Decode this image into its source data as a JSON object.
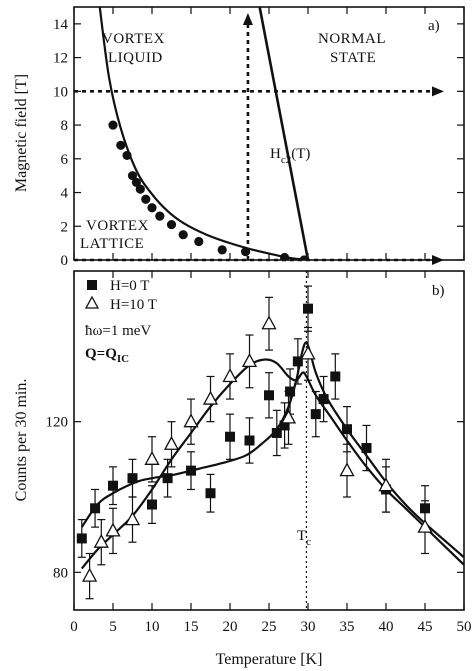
{
  "chart_data": [
    {
      "type": "line",
      "panel_tag": "a)",
      "ylabel": "Magnetic field [T]",
      "xlabel": "",
      "xlim": [
        0,
        50
      ],
      "ylim": [
        0,
        15
      ],
      "xticks": [
        0,
        5,
        10,
        15,
        20,
        25,
        30,
        35,
        40,
        45,
        50
      ],
      "yticks": [
        0,
        2,
        4,
        6,
        8,
        10,
        12,
        14
      ],
      "ytick_labels": [
        "0",
        "2",
        "4",
        "6",
        "8",
        "10",
        "12",
        "14"
      ],
      "region_labels": {
        "vortex_liquid_1": "VORTEX",
        "vortex_liquid_2": "LIQUID",
        "normal_1": "NORMAL",
        "normal_2": "STATE",
        "lattice_1": "VORTEX",
        "lattice_2": "LATTICE"
      },
      "hc2_label": "H",
      "hc2_sub": "c2",
      "hc2_suffix": "(T)",
      "series": [
        {
          "style": "filled-circle",
          "points": [
            [
              5,
              8.0
            ],
            [
              6,
              6.8
            ],
            [
              6.8,
              6.2
            ],
            [
              7.5,
              5.0
            ],
            [
              8,
              4.6
            ],
            [
              8.5,
              4.2
            ],
            [
              9.2,
              3.6
            ],
            [
              10,
              3.1
            ],
            [
              11,
              2.6
            ],
            [
              12.5,
              2.1
            ],
            [
              14,
              1.5
            ],
            [
              16,
              1.1
            ],
            [
              19,
              0.6
            ],
            [
              22,
              0.5
            ],
            [
              27,
              0.15
            ],
            [
              29.5,
              0.0
            ]
          ]
        },
        {
          "style": "line",
          "points": [
            [
              3.3,
              15
            ],
            [
              4.5,
              10.8
            ],
            [
              6,
              7.8
            ],
            [
              8,
              5.3
            ],
            [
              10,
              3.9
            ],
            [
              12,
              2.9
            ],
            [
              14,
              2.2
            ],
            [
              17,
              1.5
            ],
            [
              20,
              1.0
            ],
            [
              23,
              0.6
            ],
            [
              26,
              0.28
            ],
            [
              28,
              0.1
            ],
            [
              30,
              0.0
            ]
          ]
        },
        {
          "style": "line",
          "points": [
            [
              23.8,
              15
            ],
            [
              30,
              0
            ]
          ]
        }
      ],
      "markers": {
        "h_level": 10,
        "h_to_x": 50,
        "v_at_x": 22.3
      }
    },
    {
      "type": "scatter",
      "panel_tag": "b)",
      "xlabel": "Temperature [K]",
      "ylabel": "Counts per 30 min.",
      "xlim": [
        0,
        50
      ],
      "ylim": [
        70,
        160
      ],
      "xticks": [
        0,
        5,
        10,
        15,
        20,
        25,
        30,
        35,
        40,
        45,
        50
      ],
      "yticks": [
        80,
        120
      ],
      "legend_line_1": "H=0 T",
      "legend_line_2": "H=10 T",
      "energy_label": "ħω=1 meV",
      "q_label_main": "Q=Q",
      "q_label_sub": "IC",
      "tc_label": "T",
      "tc_sub": "c",
      "tc_value": 29.8,
      "series": [
        {
          "name": "H=0 T",
          "marker": "filled-square",
          "points": [
            {
              "x": 1,
              "y": 89,
              "err": 5
            },
            {
              "x": 2.7,
              "y": 97,
              "err": 5
            },
            {
              "x": 5,
              "y": 103,
              "err": 5
            },
            {
              "x": 7.5,
              "y": 105,
              "err": 5
            },
            {
              "x": 10,
              "y": 98,
              "err": 5
            },
            {
              "x": 12,
              "y": 105,
              "err": 5
            },
            {
              "x": 15,
              "y": 107,
              "err": 5
            },
            {
              "x": 17.5,
              "y": 101,
              "err": 5
            },
            {
              "x": 20,
              "y": 116,
              "err": 6
            },
            {
              "x": 22.5,
              "y": 115,
              "err": 6
            },
            {
              "x": 25,
              "y": 127,
              "err": 6
            },
            {
              "x": 26,
              "y": 117,
              "err": 6
            },
            {
              "x": 27,
              "y": 119,
              "err": 6
            },
            {
              "x": 27.7,
              "y": 128,
              "err": 6
            },
            {
              "x": 28.7,
              "y": 136,
              "err": 6
            },
            {
              "x": 30,
              "y": 150,
              "err": 6
            },
            {
              "x": 31,
              "y": 122,
              "err": 6
            },
            {
              "x": 32,
              "y": 126,
              "err": 6
            },
            {
              "x": 33.5,
              "y": 132,
              "err": 6
            },
            {
              "x": 35,
              "y": 118,
              "err": 6
            },
            {
              "x": 37.5,
              "y": 113,
              "err": 6
            },
            {
              "x": 40,
              "y": 102,
              "err": 6
            },
            {
              "x": 45,
              "y": 97,
              "err": 6
            }
          ]
        },
        {
          "name": "H=10 T",
          "marker": "open-triangle",
          "points": [
            {
              "x": 2,
              "y": 79,
              "err": 6
            },
            {
              "x": 3.5,
              "y": 88,
              "err": 6
            },
            {
              "x": 5,
              "y": 91,
              "err": 6
            },
            {
              "x": 7.5,
              "y": 94,
              "err": 6
            },
            {
              "x": 10,
              "y": 110,
              "err": 6
            },
            {
              "x": 12.5,
              "y": 114,
              "err": 6
            },
            {
              "x": 15,
              "y": 120,
              "err": 6
            },
            {
              "x": 17.5,
              "y": 126,
              "err": 6
            },
            {
              "x": 20,
              "y": 132,
              "err": 6
            },
            {
              "x": 22.5,
              "y": 136,
              "err": 7
            },
            {
              "x": 25,
              "y": 146,
              "err": 7
            },
            {
              "x": 27.5,
              "y": 121,
              "err": 7
            },
            {
              "x": 30,
              "y": 138,
              "err": 7
            },
            {
              "x": 35,
              "y": 107,
              "err": 7
            },
            {
              "x": 40,
              "y": 103,
              "err": 7
            },
            {
              "x": 45,
              "y": 92,
              "err": 7
            }
          ]
        }
      ],
      "fit_curves": [
        {
          "name": "H=0 T",
          "points": [
            [
              1,
              92
            ],
            [
              3,
              98
            ],
            [
              5,
              101
            ],
            [
              8,
              104
            ],
            [
              10,
              105
            ],
            [
              13,
              106
            ],
            [
              16,
              107.5
            ],
            [
              19,
              109
            ],
            [
              22,
              111
            ],
            [
              24,
              114
            ],
            [
              26,
              118
            ],
            [
              27.5,
              124
            ],
            [
              28.5,
              131
            ],
            [
              29.2,
              138
            ],
            [
              29.7,
              141
            ],
            [
              30.2,
              139
            ],
            [
              31,
              133
            ],
            [
              32.5,
              126
            ],
            [
              35,
              118
            ],
            [
              37.5,
              111
            ],
            [
              40,
              104
            ],
            [
              42.5,
              98
            ],
            [
              45,
              93
            ],
            [
              50,
              84
            ]
          ]
        },
        {
          "name": "H=10 T",
          "points": [
            [
              1,
              81
            ],
            [
              3,
              86
            ],
            [
              5,
              90
            ],
            [
              7.5,
              95
            ],
            [
              10,
              102
            ],
            [
              12.5,
              110
            ],
            [
              15,
              117
            ],
            [
              17.5,
              124
            ],
            [
              20,
              130
            ],
            [
              22.5,
              135
            ],
            [
              24.5,
              136.5
            ],
            [
              26,
              135.5
            ],
            [
              27.5,
              132
            ],
            [
              28.5,
              131
            ],
            [
              29.3,
              133
            ],
            [
              29.8,
              132
            ],
            [
              31,
              127
            ],
            [
              33,
              121
            ],
            [
              35,
              115
            ],
            [
              37.5,
              108
            ],
            [
              40,
              102
            ],
            [
              42.5,
              97
            ],
            [
              45,
              92
            ],
            [
              50,
              82
            ]
          ]
        }
      ]
    }
  ]
}
